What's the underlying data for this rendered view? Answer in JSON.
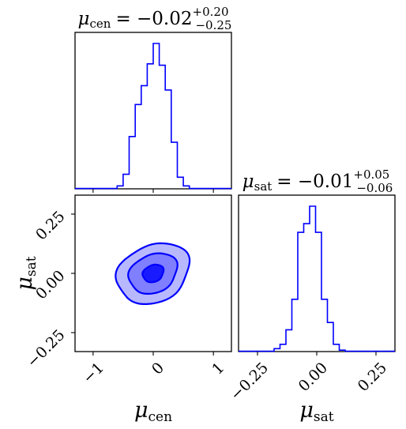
{
  "chart_data": {
    "type": "corner",
    "parameters": [
      {
        "name": "μ_cen",
        "symbol": "μ",
        "subscript": "cen",
        "title": {
          "value": "= −0.02",
          "plus": "+0.20",
          "minus": "−0.25"
        },
        "axis_label": "μ_cen",
        "xlim": [
          -1.3,
          1.3
        ],
        "ticks": [
          -1,
          0,
          1
        ],
        "tick_labels": [
          "−1",
          "0",
          "1"
        ],
        "histogram": {
          "bin_edges": [
            -1.3,
            -0.6,
            -0.5,
            -0.4,
            -0.3,
            -0.2,
            -0.1,
            0.0,
            0.1,
            0.2,
            0.3,
            0.4,
            0.5,
            0.6,
            1.3
          ],
          "counts": [
            0.002,
            0.02,
            0.1,
            0.36,
            0.58,
            0.71,
            0.86,
            1.0,
            0.85,
            0.68,
            0.32,
            0.08,
            0.02,
            0.002
          ]
        }
      },
      {
        "name": "μ_sat",
        "symbol": "μ",
        "subscript": "sat",
        "title": {
          "value": "= −0.01",
          "plus": "+0.05",
          "minus": "−0.06"
        },
        "axis_label": "μ_sat",
        "xlim": [
          -0.33,
          0.33
        ],
        "ticks": [
          -0.25,
          0.0,
          0.25
        ],
        "tick_labels": [
          "−0.25",
          "0.00",
          "0.25"
        ],
        "histogram": {
          "bin_edges": [
            -0.33,
            -0.18,
            -0.155,
            -0.13,
            -0.105,
            -0.08,
            -0.055,
            -0.03,
            -0.005,
            0.02,
            0.045,
            0.07,
            0.095,
            0.12,
            0.33
          ],
          "counts": [
            0.002,
            0.02,
            0.05,
            0.15,
            0.36,
            0.82,
            0.88,
            1.0,
            0.82,
            0.36,
            0.2,
            0.05,
            0.01,
            0.002
          ]
        }
      }
    ],
    "contour": {
      "x_param": "μ_cen",
      "y_param": "μ_sat",
      "center": [
        0.0,
        0.0
      ],
      "correlation": "negative",
      "levels": [
        {
          "name": "outer",
          "rx": 0.63,
          "ry": 0.12,
          "fill": "#b8b8ff"
        },
        {
          "name": "middle",
          "rx": 0.42,
          "ry": 0.08,
          "fill": "#7f7fff"
        },
        {
          "name": "inner",
          "rx": 0.18,
          "ry": 0.035,
          "fill": "#1a1aff"
        }
      ],
      "line_color": "#0000ff"
    },
    "grid": false,
    "line_color": "#0000ff"
  }
}
